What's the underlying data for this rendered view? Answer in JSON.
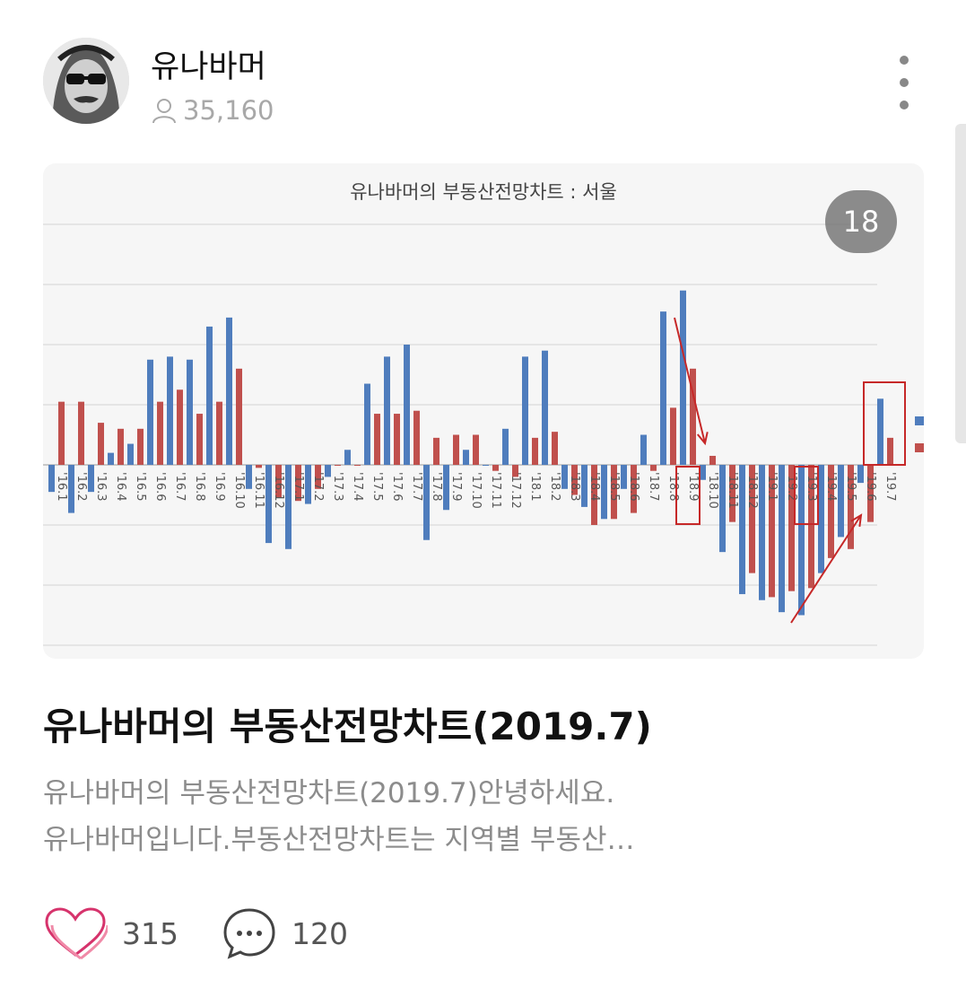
{
  "author": {
    "name": "유나바머",
    "followers": "35,160"
  },
  "card": {
    "photo_count": "18"
  },
  "chart_data": {
    "type": "bar",
    "title": "유나바머의 부동산전망차트 : 서울",
    "categories": [
      "'16.1",
      "'16.2",
      "'16.3",
      "'16.4",
      "'16.5",
      "'16.6",
      "'16.7",
      "'16.8",
      "'16.9",
      "'16.10",
      "'16.11",
      "'16.12",
      "'17.1",
      "'17.2",
      "'17.3",
      "'17.4",
      "'17.5",
      "'17.6",
      "'17.7",
      "'17.8",
      "'17.9",
      "'17.10",
      "'17.11",
      "'17.12",
      "'18.1",
      "'18.2",
      "'18.3",
      "'18.4",
      "'18.5",
      "'18.6",
      "'18.7",
      "'18.8",
      "'18.9",
      "'18.10",
      "'18.11",
      "'18.12",
      "'19.1",
      "'19.2",
      "'19.3",
      "'19.4",
      "'19.5",
      "'19.6",
      "'19.7"
    ],
    "series": [
      {
        "color": "#4f7dbd",
        "values": [
          -0.9,
          -1.6,
          -0.9,
          0.4,
          0.7,
          3.5,
          3.6,
          3.5,
          4.6,
          4.9,
          -0.8,
          -2.6,
          -2.8,
          -1.3,
          -0.4,
          0.5,
          2.7,
          3.6,
          4.0,
          -2.5,
          -1.5,
          0.5,
          0.0,
          1.2,
          3.6,
          3.8,
          -0.8,
          -1.4,
          -1.8,
          -0.8,
          1.0,
          5.1,
          5.8,
          -0.5,
          -2.9,
          -4.3,
          -4.5,
          -4.9,
          -5.0,
          -3.6,
          -2.4,
          -0.6,
          2.2
        ]
      },
      {
        "color": "#c0504d",
        "values": [
          2.1,
          2.1,
          1.4,
          1.2,
          1.2,
          2.1,
          2.5,
          1.7,
          2.1,
          3.2,
          -0.1,
          -1.1,
          -1.2,
          -0.8,
          0.0,
          0.0,
          1.7,
          1.7,
          1.8,
          0.9,
          1.0,
          1.0,
          -0.2,
          -0.4,
          0.9,
          1.1,
          -1.0,
          -2.0,
          -1.8,
          -1.6,
          -0.2,
          1.9,
          3.2,
          0.3,
          -1.9,
          -3.6,
          -4.4,
          -4.2,
          -4.1,
          -3.1,
          -2.8,
          -1.9,
          0.9
        ]
      }
    ],
    "ylim": [
      -6,
      8
    ],
    "grid": true,
    "legend": "none",
    "annotations": [
      "'18.9",
      "'19.3",
      "'19.7"
    ]
  },
  "post": {
    "title": "유나바머의 부동산전망차트(2019.7)",
    "excerpt_line1": "유나바머의 부동산전망차트(2019.7)안녕하세요.",
    "excerpt_line2": "유나바머입니다.부동산전망차트는 지역별 부동산…"
  },
  "stats": {
    "likes": "315",
    "comments": "120"
  }
}
